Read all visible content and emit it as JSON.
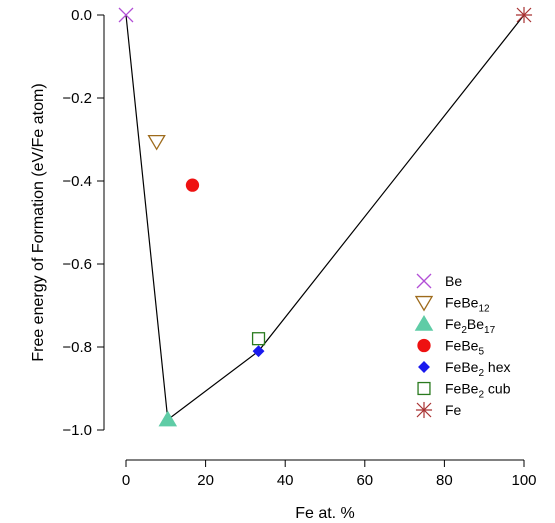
{
  "chart_data": {
    "type": "scatter",
    "title": "",
    "xlabel": "Fe at. %",
    "ylabel": "Free energy of Formation (eV/Fe atom)",
    "xlim": [
      0,
      100
    ],
    "ylim": [
      -1.0,
      0.0
    ],
    "x_ticks": [
      0,
      20,
      40,
      60,
      80,
      100
    ],
    "y_ticks": [
      0.0,
      -0.2,
      -0.4,
      -0.6,
      -0.8,
      -1.0
    ],
    "x_tick_labels": [
      "0",
      "20",
      "40",
      "60",
      "80",
      "100"
    ],
    "y_tick_labels": [
      "0.0",
      "−0.2",
      "−0.4",
      "−0.6",
      "−0.8",
      "−1.0"
    ],
    "grid": false,
    "legend_position": "bottom-right",
    "series": [
      {
        "name": "Be",
        "base": "Be",
        "sub": "",
        "suffix": "",
        "marker": "x",
        "color": "#b24fd6",
        "x": 0,
        "y": 0.0
      },
      {
        "name": "FeBe12",
        "base": "FeBe",
        "sub": "12",
        "suffix": "",
        "marker": "triangle-down-open",
        "color": "#9e6b1c",
        "x": 7.7,
        "y": -0.305
      },
      {
        "name": "Fe2Be17",
        "base": "Fe",
        "sub": "2",
        "suffix": "Be",
        "sub2": "17",
        "marker": "triangle-filled",
        "color": "#5fcca6",
        "x": 10.5,
        "y": -0.975
      },
      {
        "name": "FeBe5",
        "base": "FeBe",
        "sub": "5",
        "suffix": "",
        "marker": "circle-filled",
        "color": "#ee1111",
        "x": 16.7,
        "y": -0.41
      },
      {
        "name": "FeBe2 hex",
        "base": "FeBe",
        "sub": "2",
        "suffix": " hex",
        "marker": "diamond-filled",
        "color": "#1a1aee",
        "x": 33.3,
        "y": -0.81
      },
      {
        "name": "FeBe2 cub",
        "base": "FeBe",
        "sub": "2",
        "suffix": " cub",
        "marker": "square-open",
        "color": "#2a7a1e",
        "x": 33.3,
        "y": -0.78
      },
      {
        "name": "Fe",
        "base": "Fe",
        "sub": "",
        "suffix": "",
        "marker": "asterisk",
        "color": "#a83232",
        "x": 100,
        "y": 0.0
      }
    ],
    "convex_hull": {
      "x": [
        0,
        10.5,
        33.3,
        100
      ],
      "y": [
        0.0,
        -0.975,
        -0.81,
        0.0
      ],
      "color": "#000000"
    }
  }
}
